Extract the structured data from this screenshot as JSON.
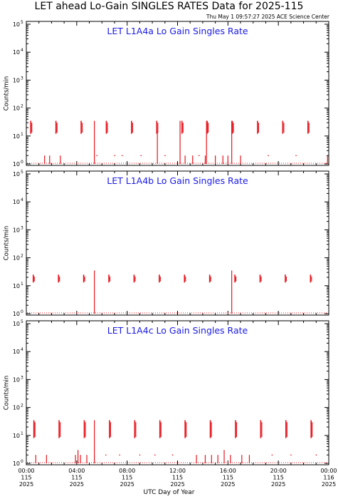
{
  "header": {
    "title": "LET ahead Lo-Gain SINGLES RATES Data for 2025-115",
    "timestamp": "Thu May  1 09:57:27 2025 ACE Science Center"
  },
  "x_axis": {
    "label": "UTC Day of Year",
    "ticks": [
      {
        "hour": 0,
        "time": "00:00",
        "doy": "115",
        "year": "2025"
      },
      {
        "hour": 4,
        "time": "04:00",
        "doy": "115",
        "year": "2025"
      },
      {
        "hour": 8,
        "time": "08:00",
        "doy": "115",
        "year": "2025"
      },
      {
        "hour": 12,
        "time": "12:00",
        "doy": "115",
        "year": "2025"
      },
      {
        "hour": 16,
        "time": "16:00",
        "doy": "115",
        "year": "2025"
      },
      {
        "hour": 20,
        "time": "20:00",
        "doy": "115",
        "year": "2025"
      },
      {
        "hour": 24,
        "time": "00:00",
        "doy": "116",
        "year": "2025"
      }
    ]
  },
  "series_color": "#e8141c",
  "title_color": "#1a1ae6",
  "chart_data": [
    {
      "type": "line",
      "title": "LET L1A4a Lo Gain Singles Rate",
      "ylabel": "Counts/min",
      "yscale": "log",
      "ylim": [
        1,
        100000
      ],
      "xlim_hours": [
        0,
        24
      ],
      "baseline": 1,
      "bursts": [
        {
          "t": 0.35,
          "peak": 35,
          "low": 12
        },
        {
          "t": 2.35,
          "peak": 35,
          "low": 12
        },
        {
          "t": 4.35,
          "peak": 35,
          "low": 12
        },
        {
          "t": 6.35,
          "peak": 35,
          "low": 12
        },
        {
          "t": 8.35,
          "peak": 35,
          "low": 12
        },
        {
          "t": 10.35,
          "peak": 35,
          "low": 12
        },
        {
          "t": 12.35,
          "peak": 35,
          "low": 12
        },
        {
          "t": 14.35,
          "peak": 35,
          "low": 12
        },
        {
          "t": 16.35,
          "peak": 35,
          "low": 12
        },
        {
          "t": 18.35,
          "peak": 35,
          "low": 12
        },
        {
          "t": 20.35,
          "peak": 35,
          "low": 12
        },
        {
          "t": 22.35,
          "peak": 35,
          "low": 12
        }
      ],
      "spikes": [
        {
          "t": 5.4,
          "peak": 35
        },
        {
          "t": 12.2,
          "peak": 35
        },
        {
          "t": 14.3,
          "peak": 35
        },
        {
          "t": 16.3,
          "peak": 35
        },
        {
          "t": 10.4,
          "peak": 15
        },
        {
          "t": 1.45,
          "peak": 2
        },
        {
          "t": 1.85,
          "peak": 2
        },
        {
          "t": 2.7,
          "peak": 2
        },
        {
          "t": 12.6,
          "peak": 2
        },
        {
          "t": 13.2,
          "peak": 2
        },
        {
          "t": 14.2,
          "peak": 2
        },
        {
          "t": 15.0,
          "peak": 2
        },
        {
          "t": 15.6,
          "peak": 2
        },
        {
          "t": 16.0,
          "peak": 2
        },
        {
          "t": 17.0,
          "peak": 2
        },
        {
          "t": 23.9,
          "peak": 2
        }
      ],
      "scatter": [
        {
          "t": 5.6,
          "y": 2
        },
        {
          "t": 7.0,
          "y": 2
        },
        {
          "t": 7.6,
          "y": 2
        },
        {
          "t": 9.1,
          "y": 2
        },
        {
          "t": 11.0,
          "y": 2
        },
        {
          "t": 13.7,
          "y": 2
        },
        {
          "t": 19.2,
          "y": 2
        },
        {
          "t": 21.4,
          "y": 2
        }
      ]
    },
    {
      "type": "line",
      "title": "LET L1A4b Lo Gain Singles Rate",
      "ylabel": "Counts/min",
      "yscale": "log",
      "ylim": [
        1,
        100000
      ],
      "xlim_hours": [
        0,
        24
      ],
      "baseline": 1,
      "bursts": [
        {
          "t": 0.55,
          "peak": 25,
          "low": 13
        },
        {
          "t": 2.55,
          "peak": 25,
          "low": 13
        },
        {
          "t": 4.55,
          "peak": 25,
          "low": 13
        },
        {
          "t": 6.55,
          "peak": 25,
          "low": 13
        },
        {
          "t": 8.55,
          "peak": 25,
          "low": 13
        },
        {
          "t": 10.55,
          "peak": 25,
          "low": 13
        },
        {
          "t": 12.55,
          "peak": 25,
          "low": 13
        },
        {
          "t": 14.55,
          "peak": 25,
          "low": 13
        },
        {
          "t": 16.55,
          "peak": 25,
          "low": 13
        },
        {
          "t": 18.55,
          "peak": 25,
          "low": 13
        },
        {
          "t": 20.55,
          "peak": 25,
          "low": 13
        },
        {
          "t": 22.55,
          "peak": 25,
          "low": 13
        }
      ],
      "spikes": [
        {
          "t": 5.4,
          "peak": 35
        },
        {
          "t": 16.3,
          "peak": 35
        }
      ],
      "scatter": []
    },
    {
      "type": "line",
      "title": "LET L1A4c Lo Gain Singles Rate",
      "ylabel": "Counts/min",
      "yscale": "log",
      "ylim": [
        1,
        100000
      ],
      "xlim_hours": [
        0,
        24
      ],
      "baseline": 1,
      "bursts": [
        {
          "t": 0.6,
          "peak": 35,
          "low": 8
        },
        {
          "t": 2.6,
          "peak": 35,
          "low": 8
        },
        {
          "t": 4.6,
          "peak": 35,
          "low": 8
        },
        {
          "t": 6.6,
          "peak": 35,
          "low": 8
        },
        {
          "t": 8.6,
          "peak": 35,
          "low": 8
        },
        {
          "t": 10.6,
          "peak": 35,
          "low": 8
        },
        {
          "t": 12.6,
          "peak": 35,
          "low": 8
        },
        {
          "t": 14.6,
          "peak": 35,
          "low": 8
        },
        {
          "t": 16.6,
          "peak": 35,
          "low": 8
        },
        {
          "t": 18.6,
          "peak": 35,
          "low": 8
        },
        {
          "t": 20.6,
          "peak": 35,
          "low": 8
        },
        {
          "t": 22.6,
          "peak": 35,
          "low": 8
        }
      ],
      "spikes": [
        {
          "t": 5.4,
          "peak": 35
        },
        {
          "t": 4.1,
          "peak": 3
        },
        {
          "t": 15.7,
          "peak": 3
        },
        {
          "t": 0.75,
          "peak": 2
        },
        {
          "t": 1.6,
          "peak": 2
        },
        {
          "t": 3.9,
          "peak": 2
        },
        {
          "t": 4.3,
          "peak": 2
        },
        {
          "t": 4.8,
          "peak": 2
        },
        {
          "t": 13.5,
          "peak": 2
        },
        {
          "t": 14.2,
          "peak": 2
        },
        {
          "t": 14.7,
          "peak": 2
        },
        {
          "t": 15.2,
          "peak": 2
        },
        {
          "t": 16.2,
          "peak": 2
        },
        {
          "t": 17.1,
          "peak": 2
        },
        {
          "t": 17.7,
          "peak": 2
        }
      ],
      "scatter": [
        {
          "t": 6.3,
          "y": 2
        },
        {
          "t": 7.4,
          "y": 2
        },
        {
          "t": 9.0,
          "y": 2
        },
        {
          "t": 10.2,
          "y": 2
        },
        {
          "t": 11.6,
          "y": 2
        },
        {
          "t": 19.5,
          "y": 2
        },
        {
          "t": 21.0,
          "y": 2
        },
        {
          "t": 23.0,
          "y": 2
        }
      ]
    }
  ]
}
